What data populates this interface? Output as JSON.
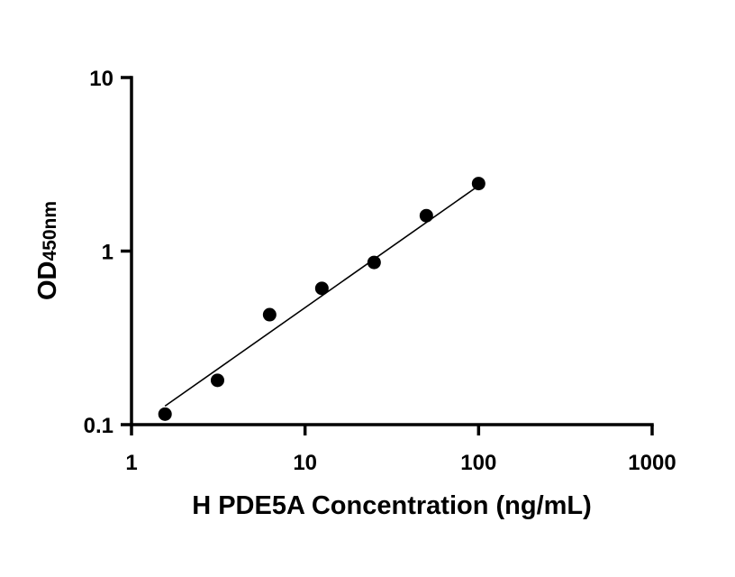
{
  "chart_data": {
    "type": "scatter",
    "title": "",
    "xlabel": "H PDE5A Concentration (ng/mL)",
    "ylabel": "OD",
    "ylabel_subscript": "450nm",
    "x_scale": "log",
    "y_scale": "log",
    "xlim": [
      1,
      1000
    ],
    "ylim": [
      0.1,
      10
    ],
    "x_ticks": [
      "1",
      "10",
      "100",
      "1000"
    ],
    "y_ticks": [
      "0.1",
      "1",
      "10"
    ],
    "grid": false,
    "legend": "none",
    "series": [
      {
        "x": [
          1.56,
          3.13,
          6.25,
          12.5,
          25,
          50,
          100
        ],
        "y": [
          0.115,
          0.18,
          0.43,
          0.61,
          0.86,
          1.6,
          2.45
        ]
      }
    ],
    "fit_line": {
      "x": [
        1.56,
        100
      ],
      "y": [
        0.128,
        2.38
      ]
    },
    "colors": {
      "points": "#000000",
      "line": "#000000",
      "axis": "#000000"
    }
  }
}
